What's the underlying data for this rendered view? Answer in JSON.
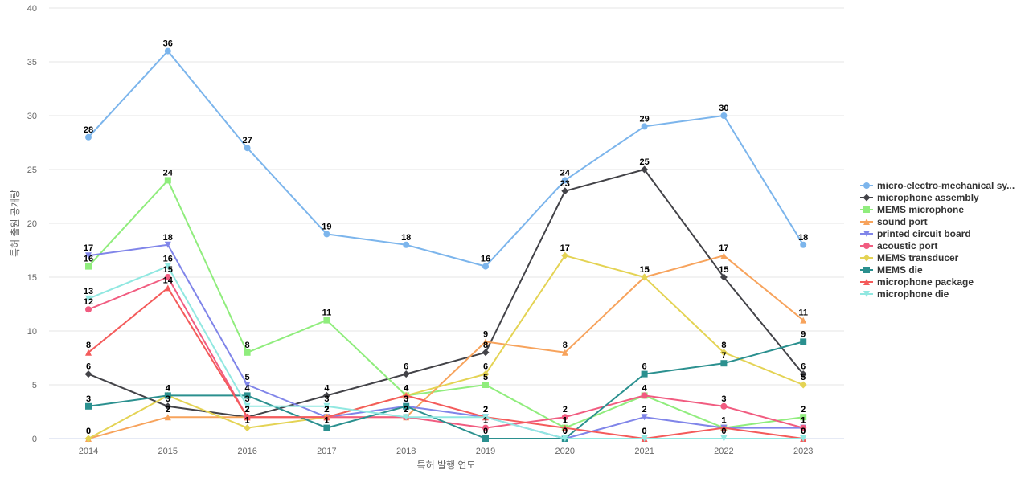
{
  "chart_data": {
    "type": "line",
    "title": "",
    "xlabel": "특허 발행 연도",
    "ylabel": "특허 출원 공개량",
    "ylim": [
      0,
      40
    ],
    "yticks": [
      0,
      5,
      10,
      15,
      20,
      25,
      30,
      35,
      40
    ],
    "grid": true,
    "legend_position": "right",
    "categories": [
      "2014",
      "2015",
      "2016",
      "2017",
      "2018",
      "2019",
      "2020",
      "2021",
      "2022",
      "2023"
    ],
    "series": [
      {
        "name": "micro-electro-mechanical sy...",
        "color": "#7cb5ec",
        "marker": "circle",
        "values": [
          28,
          36,
          27,
          19,
          18,
          16,
          24,
          29,
          30,
          18
        ]
      },
      {
        "name": "microphone assembly",
        "color": "#434348",
        "marker": "diamond",
        "values": [
          6,
          3,
          2,
          4,
          6,
          8,
          23,
          25,
          15,
          6
        ]
      },
      {
        "name": "MEMS microphone",
        "color": "#90ed7d",
        "marker": "square",
        "values": [
          16,
          24,
          8,
          11,
          4,
          5,
          1,
          4,
          1,
          2
        ]
      },
      {
        "name": "sound port",
        "color": "#f7a35c",
        "marker": "triangle",
        "values": [
          0,
          2,
          2,
          2,
          2,
          9,
          8,
          15,
          17,
          11
        ]
      },
      {
        "name": "printed circuit board",
        "color": "#8085e9",
        "marker": "triangle-down",
        "values": [
          17,
          18,
          5,
          2,
          3,
          2,
          0,
          2,
          1,
          1
        ]
      },
      {
        "name": "acoustic port",
        "color": "#f15c80",
        "marker": "circle",
        "values": [
          12,
          15,
          2,
          2,
          2,
          1,
          2,
          4,
          3,
          1
        ]
      },
      {
        "name": "MEMS transducer",
        "color": "#e4d354",
        "marker": "diamond",
        "values": [
          0,
          4,
          1,
          2,
          4,
          6,
          17,
          15,
          8,
          5
        ]
      },
      {
        "name": "MEMS die",
        "color": "#2b908f",
        "marker": "square",
        "values": [
          3,
          4,
          4,
          1,
          3,
          0,
          0,
          6,
          7,
          9
        ]
      },
      {
        "name": "microphone package",
        "color": "#f45b5b",
        "marker": "triangle",
        "values": [
          8,
          14,
          2,
          2,
          4,
          2,
          1,
          0,
          1,
          0
        ]
      },
      {
        "name": "microphone die",
        "color": "#91e8e1",
        "marker": "triangle-down",
        "values": [
          13,
          16,
          3,
          3,
          2,
          2,
          0,
          0,
          0,
          0
        ]
      }
    ]
  }
}
